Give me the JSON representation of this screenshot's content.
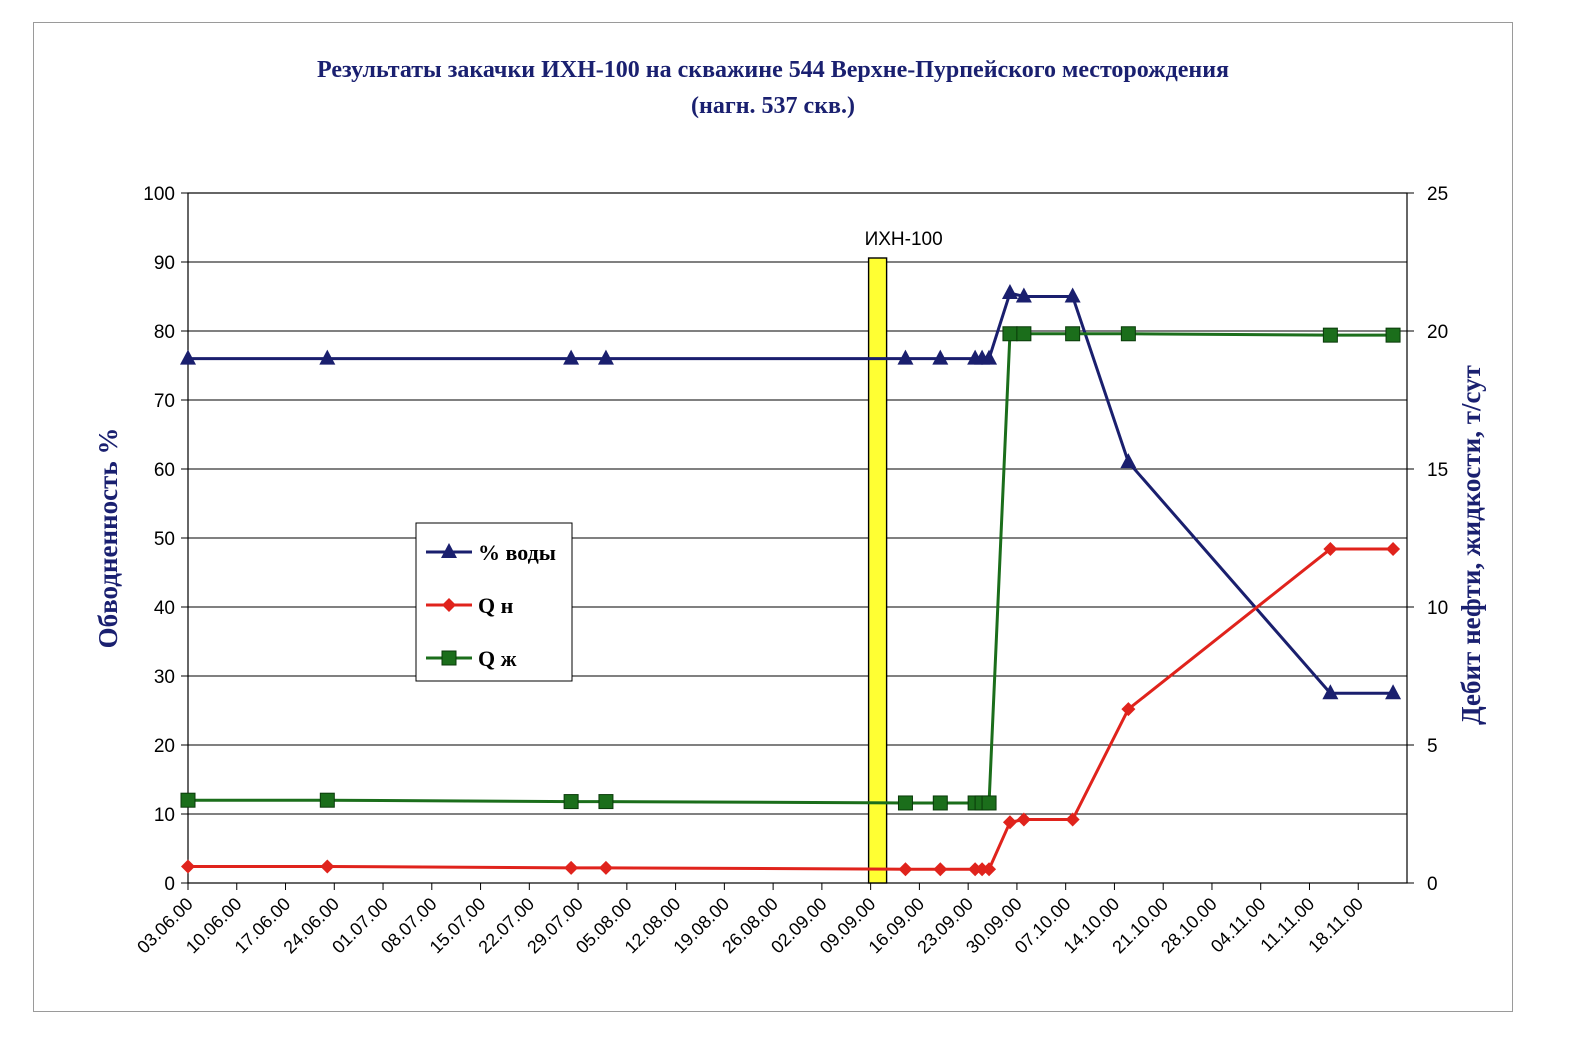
{
  "chart_data": {
    "type": "line",
    "title": "Результаты закачки ИХН-100 на скважине 544 Верхне-Пурпейского месторождения",
    "subtitle": "(нагн. 537 скв.)",
    "ylabel_left": "Обводненность %",
    "ylabel_right": "Дебит нефти, жидкости, т/сут",
    "ylim_left": [
      0,
      100
    ],
    "ylim_right": [
      0,
      25
    ],
    "yticks_left": [
      "0",
      "10",
      "20",
      "30",
      "40",
      "50",
      "60",
      "70",
      "80",
      "90",
      "100"
    ],
    "yticks_right": [
      "0",
      "5",
      "10",
      "15",
      "20",
      "25"
    ],
    "x_tick_labels": [
      "03.06.00",
      "10.06.00",
      "17.06.00",
      "24.06.00",
      "01.07.00",
      "08.07.00",
      "15.07.00",
      "22.07.00",
      "29.07.00",
      "05.08.00",
      "12.08.00",
      "19.08.00",
      "26.08.00",
      "02.09.00",
      "09.09.00",
      "16.09.00",
      "23.09.00",
      "30.09.00",
      "07.10.00",
      "14.10.00",
      "21.10.00",
      "28.10.00",
      "04.11.00",
      "11.11.00",
      "18.11.00"
    ],
    "x_range_days": [
      0,
      175
    ],
    "grid": true,
    "legend_position": "center-left",
    "annotation": {
      "label": "ИХН-100",
      "x": 99,
      "color": "#ffff33"
    },
    "series": [
      {
        "name": "% воды",
        "axis": "left",
        "color": "#1a1f6e",
        "marker": "triangle",
        "x": [
          0,
          20,
          55,
          60,
          103,
          108,
          113,
          114,
          115,
          118,
          120,
          127,
          135,
          164,
          173
        ],
        "y": [
          76,
          76,
          76,
          76,
          76,
          76,
          76,
          76,
          76,
          85.5,
          85,
          85,
          61,
          27.5,
          27.5
        ]
      },
      {
        "name": "Q н",
        "axis": "right",
        "color": "#e0231c",
        "marker": "diamond",
        "x": [
          0,
          20,
          55,
          60,
          103,
          108,
          113,
          114,
          115,
          118,
          120,
          127,
          135,
          164,
          173
        ],
        "y": [
          0.6,
          0.6,
          0.55,
          0.55,
          0.5,
          0.5,
          0.5,
          0.5,
          0.5,
          2.2,
          2.3,
          2.3,
          6.3,
          12.1,
          12.1
        ]
      },
      {
        "name": "Q ж",
        "axis": "right",
        "color": "#1b6e1b",
        "marker": "square",
        "x": [
          0,
          20,
          55,
          60,
          103,
          108,
          113,
          114,
          115,
          118,
          120,
          127,
          135,
          164,
          173
        ],
        "y": [
          3.0,
          3.0,
          2.95,
          2.95,
          2.9,
          2.9,
          2.9,
          2.9,
          2.9,
          19.9,
          19.9,
          19.9,
          19.9,
          19.85,
          19.85
        ]
      }
    ]
  }
}
